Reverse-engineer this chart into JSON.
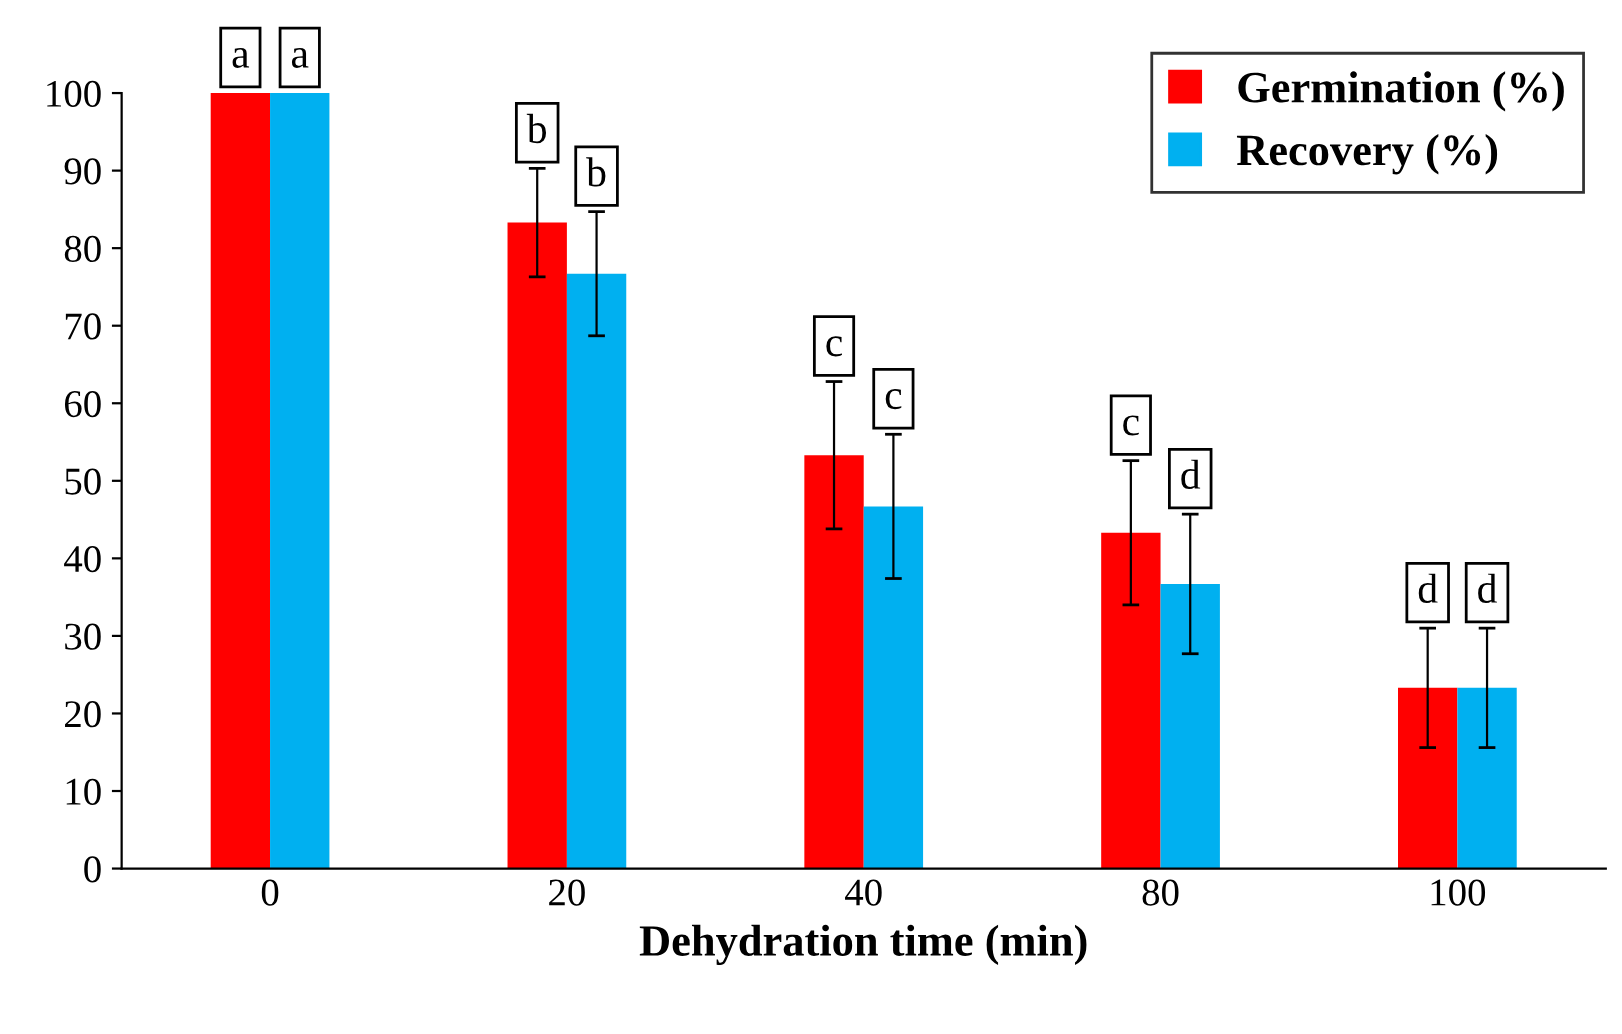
{
  "chart_data": {
    "type": "bar",
    "xlabel": "Dehydration time (min)",
    "categories": [
      "0",
      "20",
      "40",
      "80",
      "100"
    ],
    "series": [
      {
        "name": "Germination (%)",
        "color": "#ff0000",
        "values": [
          100,
          83.3,
          53.3,
          43.3,
          23.3
        ],
        "errors": [
          null,
          7,
          9.5,
          9.3,
          7.7
        ]
      },
      {
        "name": "Recovery (%)",
        "color": "#00b0f0",
        "values": [
          100,
          76.7,
          46.7,
          36.7,
          23.3
        ],
        "errors": [
          null,
          8,
          9.3,
          9,
          7.7
        ]
      }
    ],
    "ylim": [
      0,
      100
    ],
    "yticks": [
      0,
      10,
      20,
      30,
      40,
      50,
      60,
      70,
      80,
      90,
      100
    ],
    "grid": false,
    "legend": "top right",
    "annotations": [
      "a",
      "a",
      "b",
      "b",
      "c",
      "c",
      "c",
      "d",
      "d",
      "d"
    ]
  }
}
